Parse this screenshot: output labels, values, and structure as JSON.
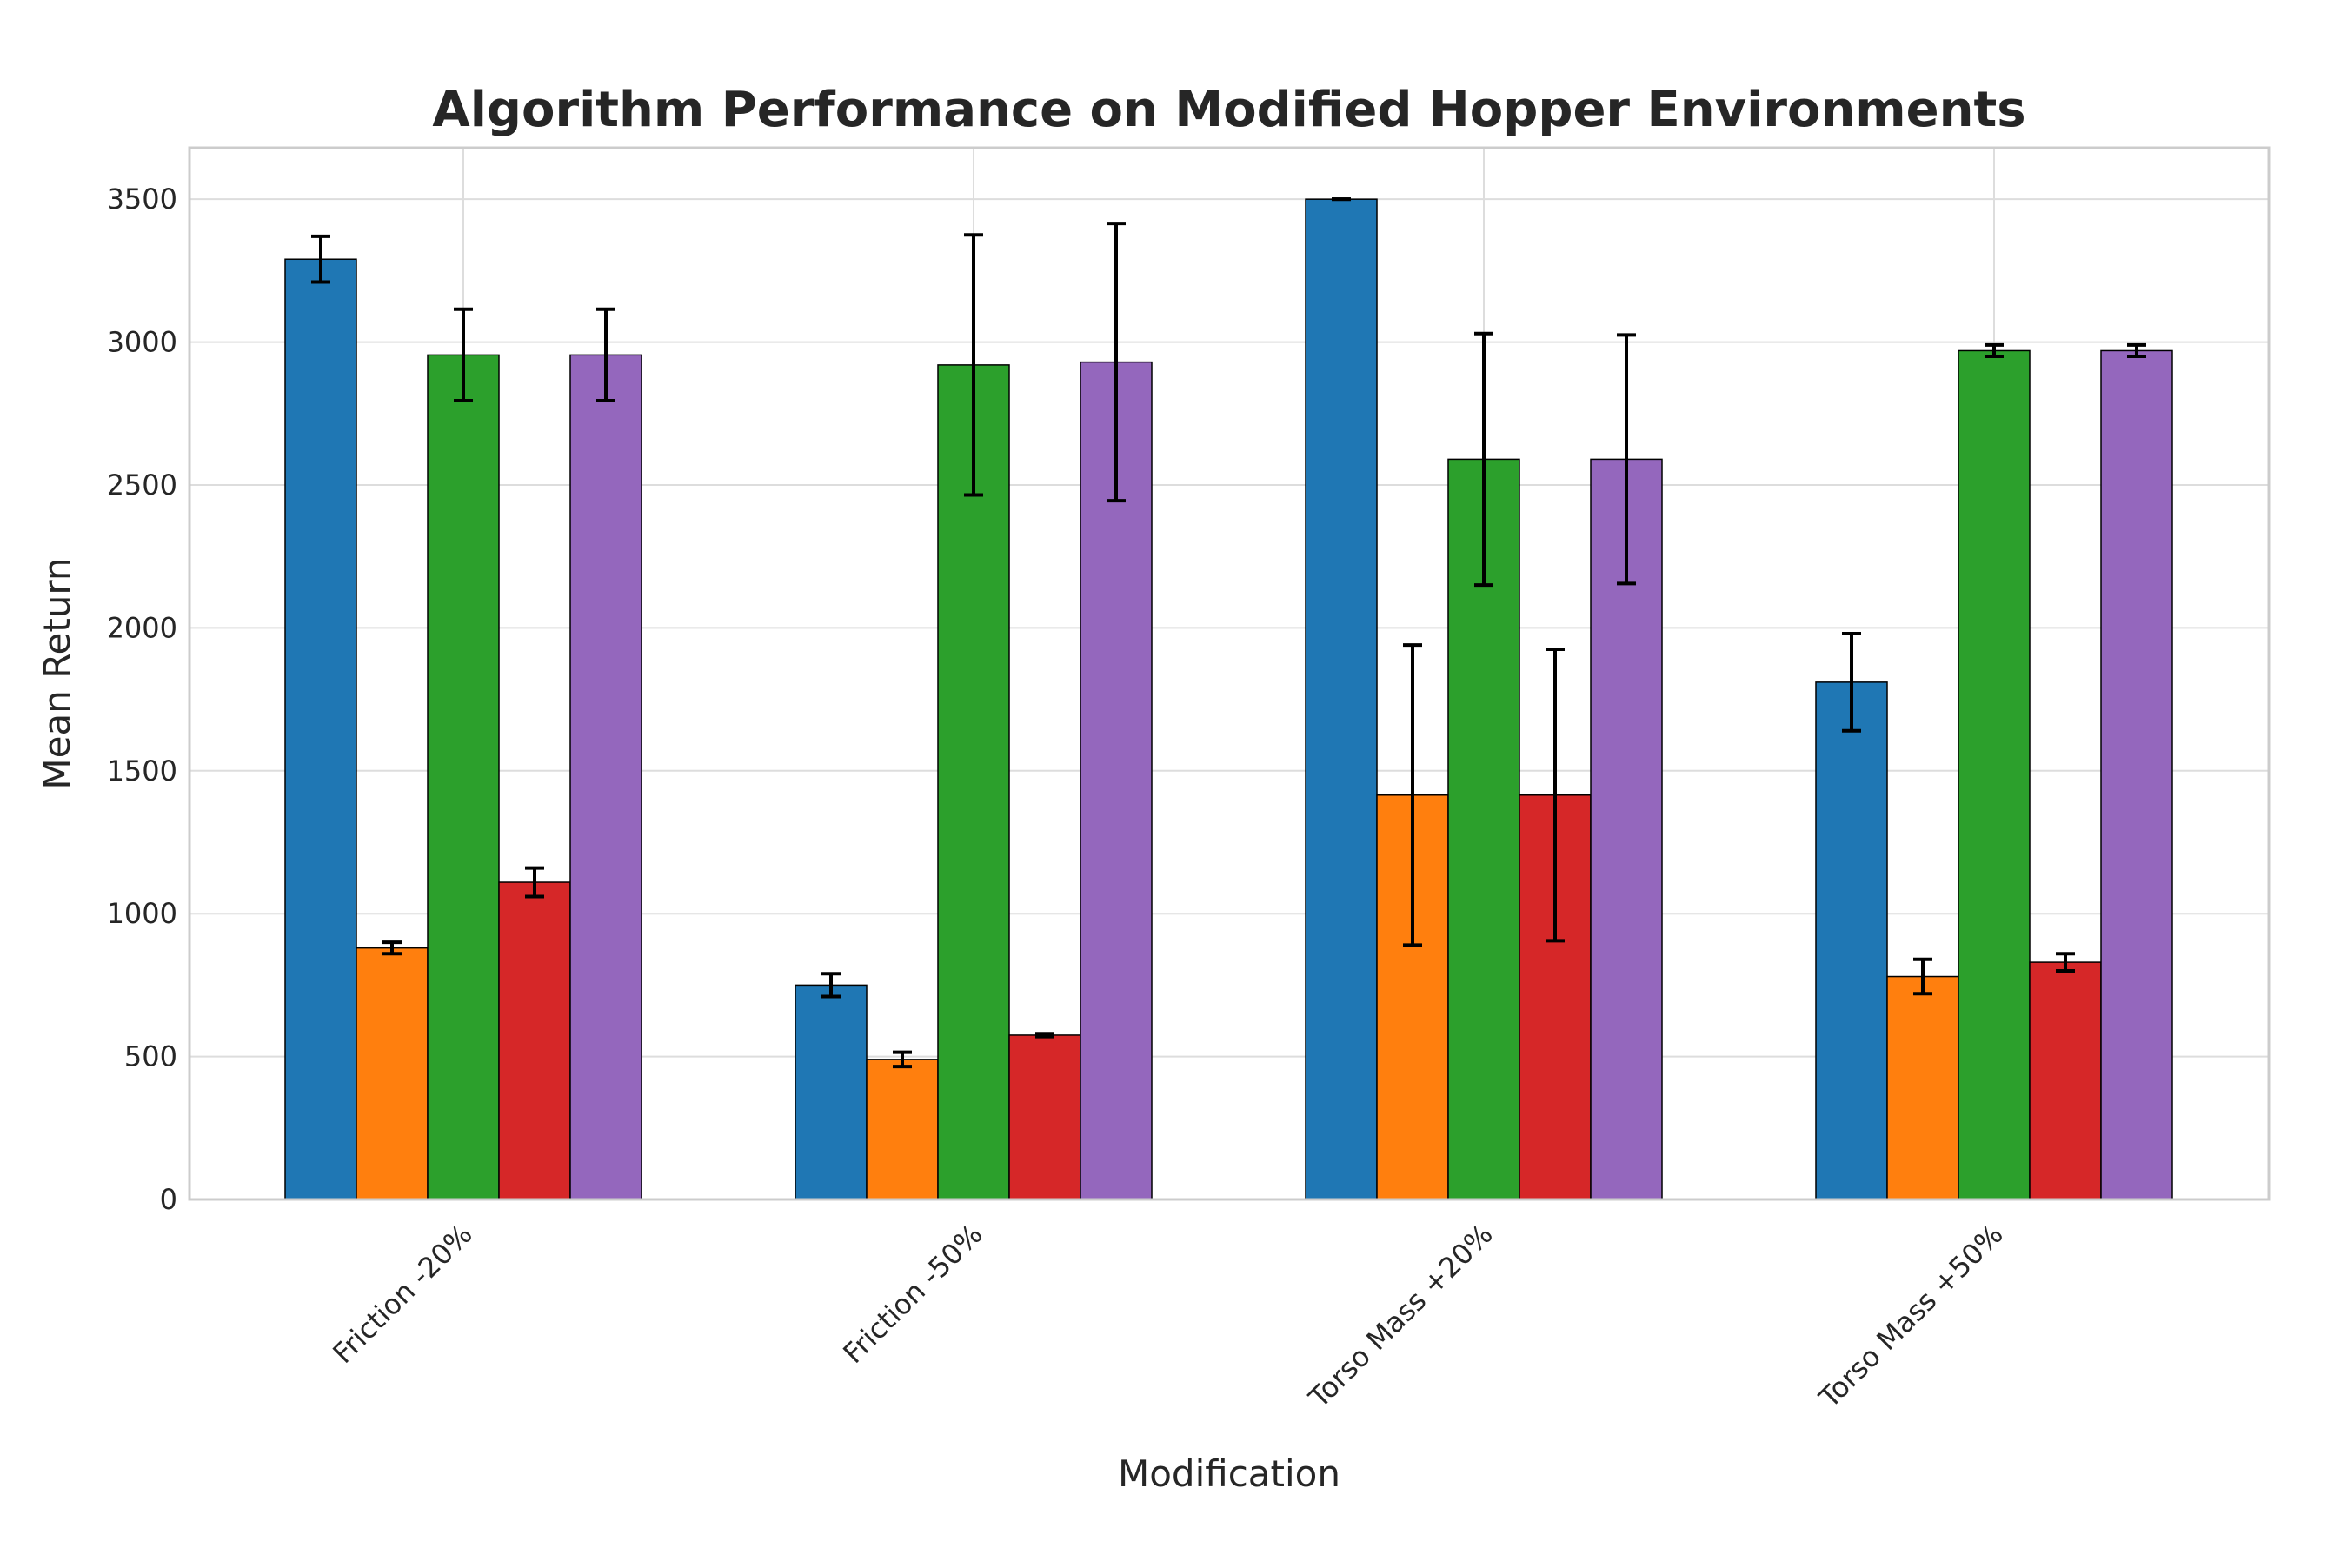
{
  "chart_data": {
    "type": "bar",
    "title": "Algorithm Performance on Modified Hopper Environments",
    "xlabel": "Modification",
    "ylabel": "Mean Return",
    "categories": [
      "Friction -20%",
      "Friction -50%",
      "Torso Mass +20%",
      "Torso Mass +50%"
    ],
    "ylim": [
      0,
      3680
    ],
    "yticks": [
      "0",
      "500",
      "1000",
      "1500",
      "2000",
      "2500",
      "3000",
      "3500"
    ],
    "grid": true,
    "legend": "none",
    "error_bars": true,
    "series": [
      {
        "color": "#1f77b4",
        "values": [
          3290,
          750,
          3500,
          1810
        ],
        "errors": [
          80,
          40,
          0,
          170
        ]
      },
      {
        "color": "#ff7f0e",
        "values": [
          880,
          490,
          1415,
          780
        ],
        "errors": [
          20,
          25,
          525,
          60
        ]
      },
      {
        "color": "#2ca02c",
        "values": [
          2955,
          2920,
          2590,
          2970
        ],
        "errors": [
          160,
          455,
          440,
          20
        ]
      },
      {
        "color": "#d62728",
        "values": [
          1110,
          575,
          1415,
          830
        ],
        "errors": [
          50,
          5,
          510,
          30
        ]
      },
      {
        "color": "#9467bd",
        "values": [
          2955,
          2930,
          2590,
          2970
        ],
        "errors": [
          160,
          485,
          435,
          20
        ]
      }
    ]
  }
}
